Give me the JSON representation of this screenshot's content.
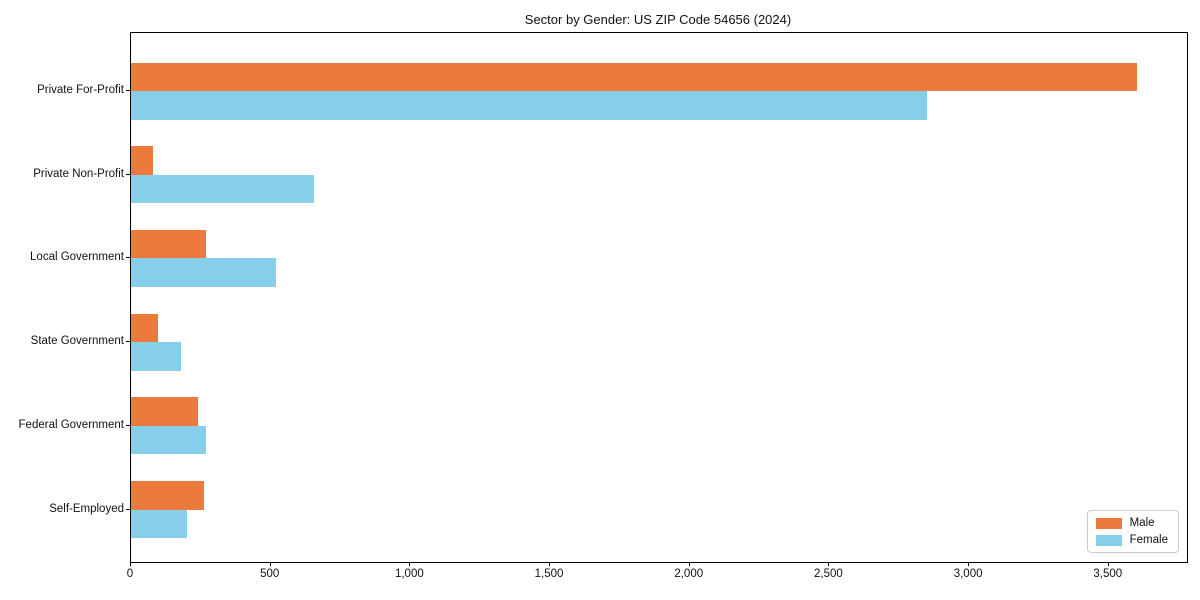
{
  "title": "Sector by Gender: US ZIP Code 54656 (2024)",
  "chart_data": {
    "type": "bar",
    "orientation": "horizontal",
    "title": "Sector by Gender: US ZIP Code 54656 (2024)",
    "xlabel": "",
    "ylabel": "",
    "categories": [
      "Private For-Profit",
      "Private Non-Profit",
      "Local Government",
      "State Government",
      "Federal Government",
      "Self-Employed"
    ],
    "series": [
      {
        "name": "Male",
        "color": "#EB7A3C",
        "values": [
          3600,
          80,
          270,
          95,
          240,
          260
        ]
      },
      {
        "name": "Female",
        "color": "#87CEEB",
        "values": [
          2850,
          655,
          520,
          180,
          270,
          200
        ]
      }
    ],
    "xlim": [
      0,
      3780
    ],
    "x_ticks": [
      0,
      500,
      1000,
      1500,
      2000,
      2500,
      3000,
      3500
    ],
    "x_tick_labels": [
      "0",
      "500",
      "1,000",
      "1,500",
      "2,000",
      "2,500",
      "3,000",
      "3,500"
    ],
    "grid": false,
    "legend": {
      "position": "lower right",
      "entries": [
        "Male",
        "Female"
      ]
    }
  }
}
